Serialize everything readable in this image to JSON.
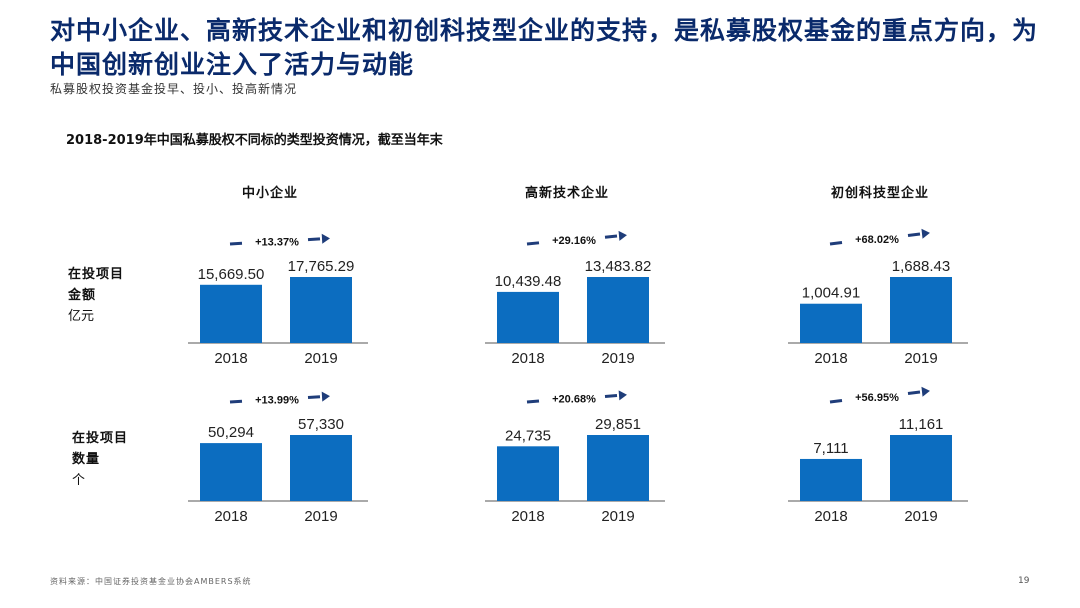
{
  "header": {
    "title": "对中小企业、高新技术企业和初创科技型企业的支持，是私募股权基金的重点方向，为中国创新创业注入了活力与动能",
    "subtitle": "私募股权投资基金投早、投小、投高新情况",
    "chart_heading": "2018-2019年中国私募股权不同标的类型投资情况，截至当年末"
  },
  "row_labels": [
    {
      "line1": "在投项目",
      "line2": "金额",
      "unit": "亿元"
    },
    {
      "line1": "在投项目",
      "line2": "数量",
      "unit": "个"
    }
  ],
  "footer": {
    "source": "资料来源：中国证券投资基金业协会AMBERS系统",
    "page_number": "19"
  },
  "colors": {
    "bar": "#0c6dc0",
    "arrow": "#1f3d7a",
    "title": "#0a2a6b"
  },
  "chart_data": [
    {
      "type": "bar",
      "panel": "中小企业",
      "row": "在投项目金额",
      "categories": [
        "2018",
        "2019"
      ],
      "values": [
        15669.5,
        17765.29
      ],
      "labels": [
        "15,669.50",
        "17,765.29"
      ],
      "growth": "+13.37%"
    },
    {
      "type": "bar",
      "panel": "高新技术企业",
      "row": "在投项目金额",
      "categories": [
        "2018",
        "2019"
      ],
      "values": [
        10439.48,
        13483.82
      ],
      "labels": [
        "10,439.48",
        "13,483.82"
      ],
      "growth": "+29.16%"
    },
    {
      "type": "bar",
      "panel": "初创科技型企业",
      "row": "在投项目金额",
      "categories": [
        "2018",
        "2019"
      ],
      "values": [
        1004.91,
        1688.43
      ],
      "labels": [
        "1,004.91",
        "1,688.43"
      ],
      "growth": "+68.02%"
    },
    {
      "type": "bar",
      "panel": "中小企业",
      "row": "在投项目数量",
      "categories": [
        "2018",
        "2019"
      ],
      "values": [
        50294,
        57330
      ],
      "labels": [
        "50,294",
        "57,330"
      ],
      "growth": "+13.99%"
    },
    {
      "type": "bar",
      "panel": "高新技术企业",
      "row": "在投项目数量",
      "categories": [
        "2018",
        "2019"
      ],
      "values": [
        24735,
        29851
      ],
      "labels": [
        "24,735",
        "29,851"
      ],
      "growth": "+20.68%"
    },
    {
      "type": "bar",
      "panel": "初创科技型企业",
      "row": "在投项目数量",
      "categories": [
        "2018",
        "2019"
      ],
      "values": [
        7111,
        11161
      ],
      "labels": [
        "7,111",
        "11,161"
      ],
      "growth": "+56.95%"
    }
  ]
}
